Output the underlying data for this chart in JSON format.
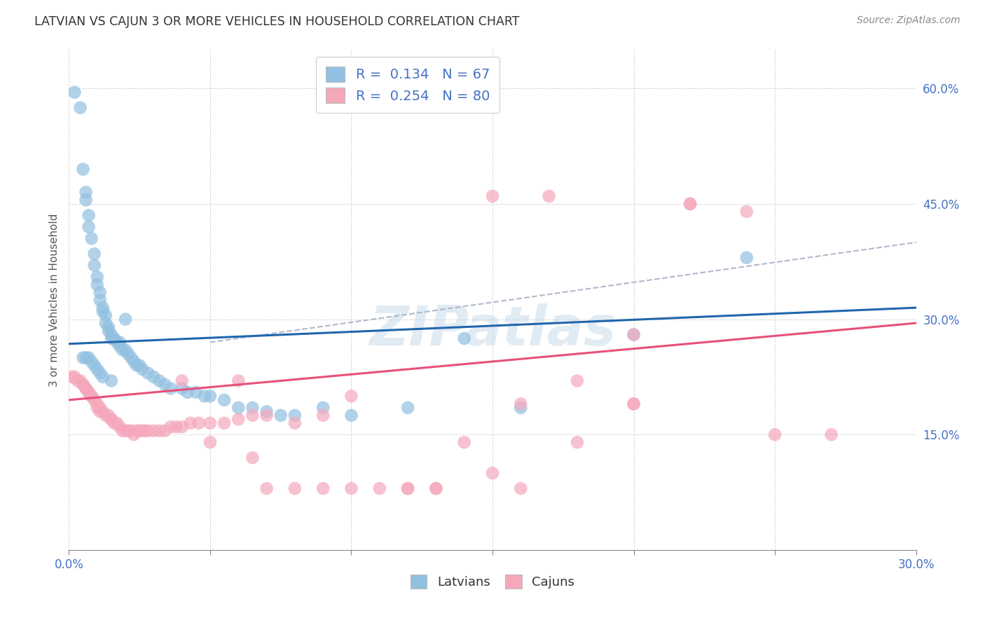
{
  "title": "LATVIAN VS CAJUN 3 OR MORE VEHICLES IN HOUSEHOLD CORRELATION CHART",
  "source": "Source: ZipAtlas.com",
  "ylabel": "3 or more Vehicles in Household",
  "x_min": 0.0,
  "x_max": 0.3,
  "y_min": 0.0,
  "y_max": 0.65,
  "x_ticks": [
    0.0,
    0.05,
    0.1,
    0.15,
    0.2,
    0.25,
    0.3
  ],
  "y_ticks": [
    0.0,
    0.15,
    0.3,
    0.45,
    0.6
  ],
  "latvian_R": 0.134,
  "latvian_N": 67,
  "cajun_R": 0.254,
  "cajun_N": 80,
  "latvian_color": "#92c0e0",
  "cajun_color": "#f5a8bc",
  "latvian_line_color": "#2166ac",
  "cajun_line_color": "#e8507a",
  "dashed_line_color": "#b0b8c8",
  "legend_latvians": "Latvians",
  "legend_cajuns": "Cajuns",
  "lat_x": [
    0.002,
    0.004,
    0.005,
    0.006,
    0.006,
    0.007,
    0.007,
    0.008,
    0.009,
    0.009,
    0.01,
    0.01,
    0.011,
    0.011,
    0.012,
    0.012,
    0.013,
    0.013,
    0.014,
    0.014,
    0.015,
    0.015,
    0.016,
    0.017,
    0.018,
    0.018,
    0.019,
    0.02,
    0.021,
    0.022,
    0.023,
    0.024,
    0.025,
    0.026,
    0.028,
    0.03,
    0.032,
    0.034,
    0.036,
    0.04,
    0.042,
    0.045,
    0.048,
    0.05,
    0.055,
    0.06,
    0.065,
    0.07,
    0.075,
    0.08,
    0.09,
    0.1,
    0.12,
    0.14,
    0.16,
    0.2,
    0.24,
    0.005,
    0.006,
    0.007,
    0.008,
    0.009,
    0.01,
    0.011,
    0.012,
    0.015,
    0.02
  ],
  "lat_y": [
    0.595,
    0.575,
    0.495,
    0.465,
    0.455,
    0.435,
    0.42,
    0.405,
    0.385,
    0.37,
    0.355,
    0.345,
    0.335,
    0.325,
    0.315,
    0.31,
    0.305,
    0.295,
    0.29,
    0.285,
    0.28,
    0.275,
    0.275,
    0.27,
    0.27,
    0.265,
    0.26,
    0.26,
    0.255,
    0.25,
    0.245,
    0.24,
    0.24,
    0.235,
    0.23,
    0.225,
    0.22,
    0.215,
    0.21,
    0.21,
    0.205,
    0.205,
    0.2,
    0.2,
    0.195,
    0.185,
    0.185,
    0.18,
    0.175,
    0.175,
    0.185,
    0.175,
    0.185,
    0.275,
    0.185,
    0.28,
    0.38,
    0.25,
    0.25,
    0.25,
    0.245,
    0.24,
    0.235,
    0.23,
    0.225,
    0.22,
    0.3
  ],
  "caj_x": [
    0.001,
    0.002,
    0.003,
    0.004,
    0.005,
    0.005,
    0.006,
    0.006,
    0.007,
    0.007,
    0.008,
    0.008,
    0.009,
    0.01,
    0.01,
    0.011,
    0.011,
    0.012,
    0.013,
    0.014,
    0.015,
    0.015,
    0.016,
    0.017,
    0.018,
    0.019,
    0.02,
    0.021,
    0.022,
    0.023,
    0.024,
    0.025,
    0.026,
    0.027,
    0.028,
    0.03,
    0.032,
    0.034,
    0.036,
    0.038,
    0.04,
    0.043,
    0.046,
    0.05,
    0.055,
    0.06,
    0.065,
    0.07,
    0.08,
    0.09,
    0.1,
    0.11,
    0.12,
    0.13,
    0.15,
    0.16,
    0.18,
    0.2,
    0.22,
    0.24,
    0.15,
    0.17,
    0.2,
    0.22,
    0.25,
    0.27,
    0.04,
    0.05,
    0.06,
    0.065,
    0.07,
    0.08,
    0.09,
    0.1,
    0.12,
    0.13,
    0.14,
    0.16,
    0.18,
    0.2
  ],
  "caj_y": [
    0.225,
    0.225,
    0.22,
    0.22,
    0.215,
    0.215,
    0.21,
    0.21,
    0.205,
    0.205,
    0.2,
    0.2,
    0.195,
    0.19,
    0.185,
    0.185,
    0.18,
    0.18,
    0.175,
    0.175,
    0.17,
    0.17,
    0.165,
    0.165,
    0.16,
    0.155,
    0.155,
    0.155,
    0.155,
    0.15,
    0.155,
    0.155,
    0.155,
    0.155,
    0.155,
    0.155,
    0.155,
    0.155,
    0.16,
    0.16,
    0.16,
    0.165,
    0.165,
    0.165,
    0.165,
    0.17,
    0.175,
    0.175,
    0.165,
    0.175,
    0.2,
    0.08,
    0.08,
    0.08,
    0.1,
    0.19,
    0.22,
    0.28,
    0.45,
    0.44,
    0.46,
    0.46,
    0.19,
    0.45,
    0.15,
    0.15,
    0.22,
    0.14,
    0.22,
    0.12,
    0.08,
    0.08,
    0.08,
    0.08,
    0.08,
    0.08,
    0.14,
    0.08,
    0.14,
    0.19
  ]
}
